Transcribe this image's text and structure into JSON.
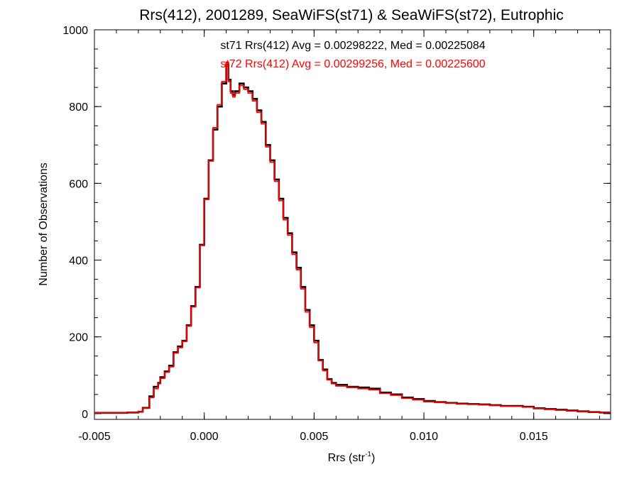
{
  "chart_data": {
    "type": "line",
    "title": "Rrs(412), 2001289, SeaWiFS(st71) & SeaWiFS(st72), Eutrophic",
    "xlabel_main": "Rrs (str",
    "xlabel_sup": "-1",
    "xlabel_close": ")",
    "ylabel": "Number of Observations",
    "xlim": [
      -0.005,
      0.0185
    ],
    "ylim": [
      -15,
      1000
    ],
    "xticks": [
      -0.005,
      0.0,
      0.005,
      0.01,
      0.015
    ],
    "xtick_labels": [
      "-0.005",
      "0.000",
      "0.005",
      "0.010",
      "0.015"
    ],
    "yticks": [
      0,
      200,
      400,
      600,
      800,
      1000
    ],
    "ytick_labels": [
      "0",
      "200",
      "400",
      "600",
      "800",
      "1000"
    ],
    "grid": false,
    "step": true,
    "annotations": [
      {
        "text": "st71 Rrs(412) Avg = 0.00298222, Med = 0.00225084",
        "color": "#000000"
      },
      {
        "text": "st72 Rrs(412) Avg = 0.00299256, Med = 0.00225600",
        "color": "#ff0000"
      }
    ],
    "series": [
      {
        "color": "#000000",
        "x": [
          -0.005,
          -0.004,
          -0.0035,
          -0.003,
          -0.0028,
          -0.0025,
          -0.0023,
          -0.0021,
          -0.002,
          -0.0018,
          -0.0016,
          -0.0014,
          -0.0012,
          -0.001,
          -0.0008,
          -0.0006,
          -0.0004,
          -0.0002,
          0.0,
          0.0002,
          0.0004,
          0.0006,
          0.0008,
          0.001,
          0.0011,
          0.0012,
          0.0013,
          0.0014,
          0.0016,
          0.0018,
          0.002,
          0.0022,
          0.0024,
          0.0026,
          0.0028,
          0.003,
          0.0032,
          0.0034,
          0.0036,
          0.0038,
          0.004,
          0.0042,
          0.0044,
          0.0046,
          0.0048,
          0.005,
          0.0052,
          0.0054,
          0.0056,
          0.0058,
          0.006,
          0.0065,
          0.007,
          0.0075,
          0.008,
          0.0085,
          0.009,
          0.0095,
          0.01,
          0.0105,
          0.011,
          0.0115,
          0.012,
          0.0125,
          0.013,
          0.0135,
          0.014,
          0.0145,
          0.015,
          0.0155,
          0.016,
          0.0165,
          0.017,
          0.0175,
          0.018
        ],
        "values": [
          2,
          2,
          3,
          5,
          15,
          45,
          70,
          80,
          95,
          110,
          125,
          160,
          175,
          190,
          230,
          280,
          330,
          440,
          560,
          660,
          740,
          800,
          860,
          910,
          870,
          840,
          830,
          840,
          860,
          850,
          840,
          820,
          790,
          760,
          700,
          660,
          610,
          560,
          510,
          470,
          420,
          380,
          330,
          270,
          230,
          190,
          140,
          115,
          90,
          80,
          75,
          70,
          68,
          65,
          55,
          50,
          42,
          38,
          33,
          30,
          28,
          26,
          25,
          24,
          22,
          20,
          20,
          18,
          14,
          12,
          10,
          8,
          6,
          4,
          3
        ]
      },
      {
        "color": "#ff0000",
        "x": [
          -0.005,
          -0.004,
          -0.0035,
          -0.003,
          -0.0028,
          -0.0025,
          -0.0023,
          -0.0021,
          -0.002,
          -0.0018,
          -0.0016,
          -0.0014,
          -0.0012,
          -0.001,
          -0.0008,
          -0.0006,
          -0.0004,
          -0.0002,
          0.0,
          0.0002,
          0.0004,
          0.0006,
          0.0008,
          0.001,
          0.0011,
          0.0012,
          0.0013,
          0.0014,
          0.0016,
          0.0018,
          0.002,
          0.0022,
          0.0024,
          0.0026,
          0.0028,
          0.003,
          0.0032,
          0.0034,
          0.0036,
          0.0038,
          0.004,
          0.0042,
          0.0044,
          0.0046,
          0.0048,
          0.005,
          0.0052,
          0.0054,
          0.0056,
          0.0058,
          0.006,
          0.0065,
          0.007,
          0.0075,
          0.008,
          0.0085,
          0.009,
          0.0095,
          0.01,
          0.0105,
          0.011,
          0.0115,
          0.012,
          0.0125,
          0.013,
          0.0135,
          0.014,
          0.0145,
          0.015,
          0.0155,
          0.016,
          0.0165,
          0.017,
          0.0175,
          0.018
        ],
        "values": [
          2,
          2,
          3,
          5,
          14,
          42,
          65,
          78,
          92,
          108,
          122,
          158,
          172,
          188,
          228,
          278,
          328,
          438,
          558,
          658,
          745,
          805,
          865,
          915,
          865,
          835,
          825,
          835,
          855,
          845,
          835,
          815,
          785,
          755,
          695,
          655,
          605,
          555,
          505,
          465,
          415,
          375,
          325,
          265,
          225,
          185,
          138,
          112,
          88,
          78,
          72,
          68,
          65,
          62,
          53,
          48,
          40,
          36,
          31,
          29,
          27,
          25,
          24,
          23,
          21,
          19,
          19,
          17,
          13,
          11,
          9,
          7,
          5,
          4,
          3
        ]
      }
    ]
  }
}
